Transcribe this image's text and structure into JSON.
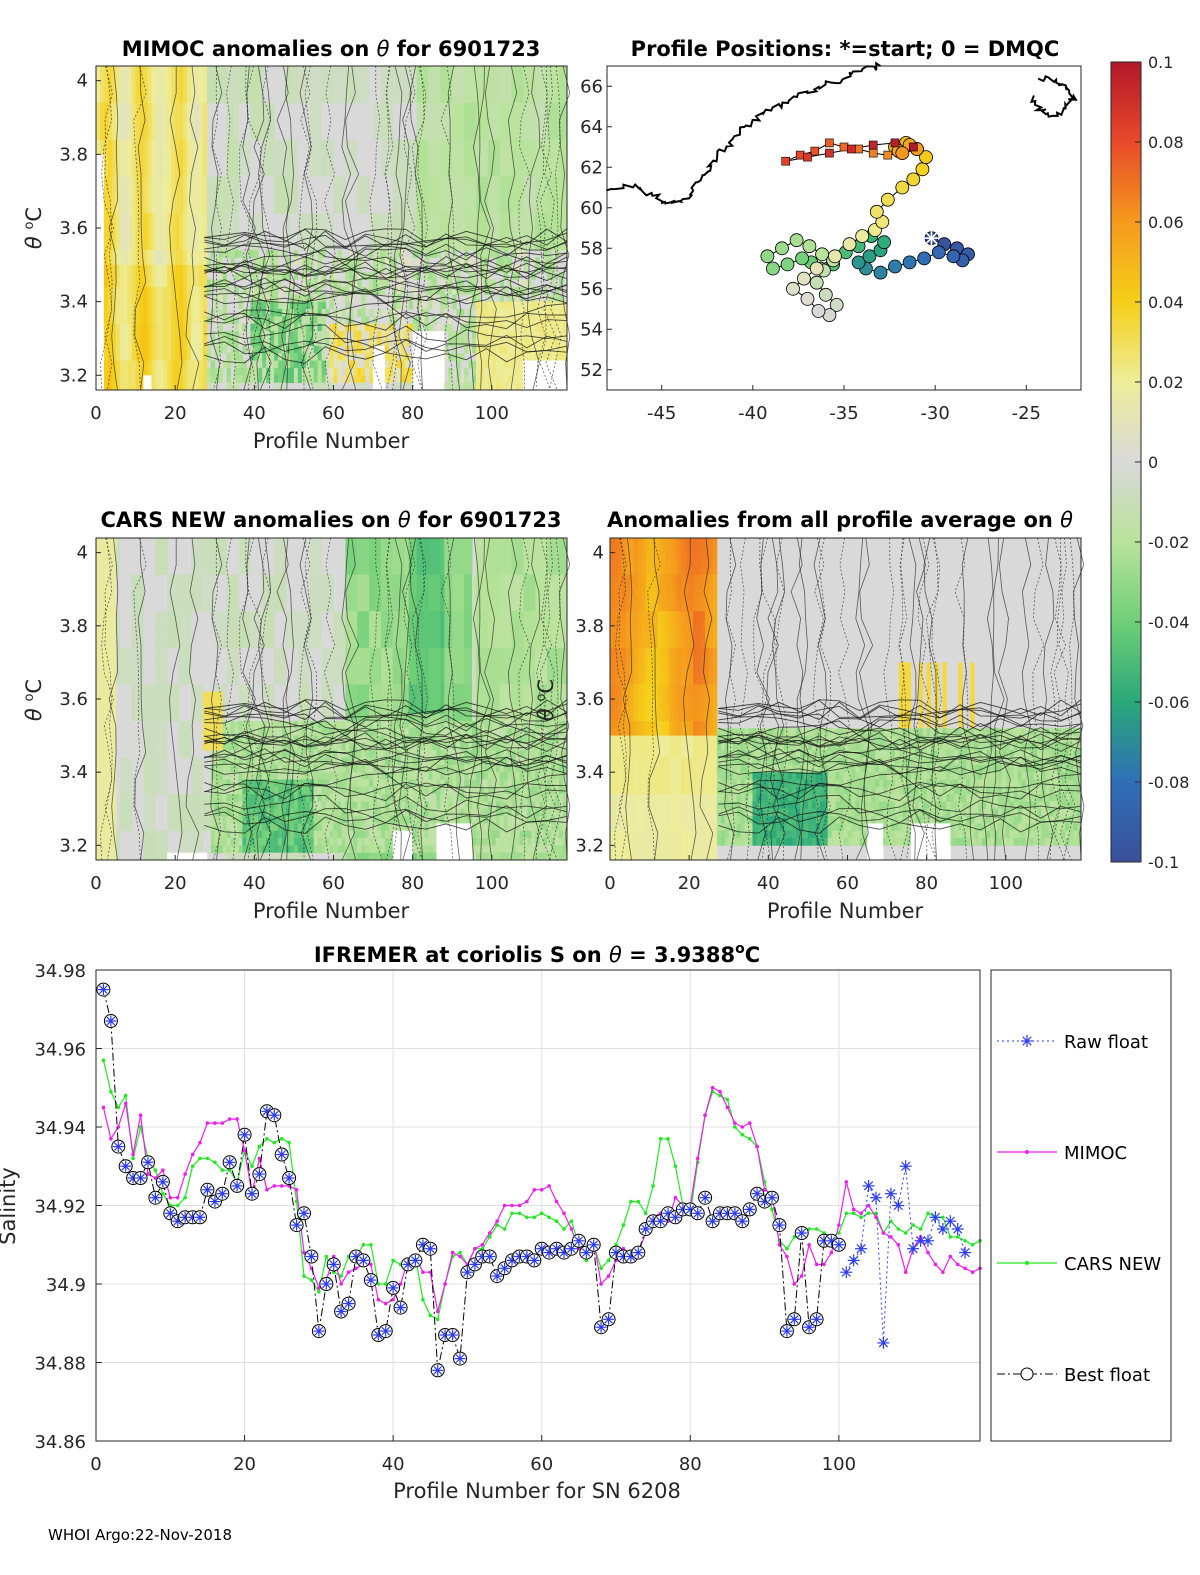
{
  "footer": "WHOI Argo:22-Nov-2018",
  "colorbar": {
    "ticks": [
      "0.1",
      "0.08",
      "0.06",
      "0.04",
      "0.02",
      "0",
      "-0.02",
      "-0.04",
      "-0.06",
      "-0.08",
      "-0.1"
    ],
    "values": [
      0.1,
      0.08,
      0.06,
      0.04,
      0.02,
      0,
      -0.02,
      -0.04,
      -0.06,
      -0.08,
      -0.1
    ],
    "stops": [
      "#b2182b",
      "#e8492a",
      "#f59a1d",
      "#f5cf19",
      "#eded9a",
      "#d9d9d9",
      "#b9e39a",
      "#6fcf77",
      "#2aa87a",
      "#2f6fb7",
      "#3a4f9a"
    ]
  },
  "chart_data": [
    {
      "type": "heatmap",
      "id": "mimoc",
      "title_main": "MIMOC anomalies on ",
      "title_theta": "θ",
      "title_rest": "  for 6901723",
      "xlabel": "Profile Number",
      "ylabel_theta": "θ",
      "ylabel_unit": " ",
      "ylabel_o": "o",
      "ylabel_c": "C",
      "xlim": [
        0,
        119
      ],
      "ylim": [
        3.16,
        4.04
      ],
      "xticks": [
        "0",
        "20",
        "40",
        "60",
        "80",
        "100"
      ],
      "yticks": [
        "3.2",
        "3.4",
        "3.6",
        "3.8",
        "4"
      ]
    },
    {
      "type": "scatter",
      "id": "positions",
      "title": "Profile Positions: *=start; 0 = DMQC",
      "xlim": [
        -48,
        -22
      ],
      "ylim": [
        51,
        67
      ],
      "xticks": [
        "-45",
        "-40",
        "-35",
        "-30",
        "-25"
      ],
      "yticks": [
        "52",
        "54",
        "56",
        "58",
        "60",
        "62",
        "64",
        "66"
      ],
      "track_lon": [
        -30.2,
        -29.5,
        -28.8,
        -28.2,
        -28.5,
        -29.0,
        -29.8,
        -30.6,
        -31.4,
        -32.2,
        -33.0,
        -33.8,
        -34.2,
        -33.6,
        -33.0,
        -32.8,
        -33.5,
        -34.2,
        -34.9,
        -35.6,
        -36.3,
        -36.8,
        -37.3,
        -38.1,
        -38.9,
        -39.2,
        -38.4,
        -37.6,
        -36.9,
        -36.2,
        -35.6,
        -36.1,
        -36.5,
        -36.0,
        -35.4,
        -35.8,
        -36.4,
        -37.0,
        -37.8,
        -37.2,
        -36.5,
        -35.5,
        -34.7,
        -34.0,
        -33.3,
        -32.9,
        -33.2,
        -32.6,
        -31.8,
        -31.2,
        -30.7,
        -30.5,
        -31.0,
        -31.6,
        -32.2,
        -32.0,
        -31.4,
        -31.0,
        -31.8,
        -32.6,
        -33.4,
        -34.2,
        -35.0,
        -35.8,
        -36.6,
        -37.4,
        -38.2,
        -37.0,
        -35.8,
        -34.6,
        -33.4,
        -32.2,
        -31.2
      ],
      "track_lat": [
        58.5,
        58.2,
        58.0,
        57.7,
        57.4,
        57.6,
        57.8,
        57.5,
        57.3,
        57.1,
        56.8,
        57.0,
        57.3,
        57.6,
        57.9,
        58.3,
        58.6,
        58.1,
        57.8,
        57.2,
        57.0,
        57.3,
        57.5,
        57.2,
        57.0,
        57.6,
        58.0,
        58.4,
        58.1,
        57.7,
        57.4,
        56.9,
        56.3,
        55.7,
        55.2,
        54.7,
        54.9,
        55.5,
        56.0,
        56.5,
        57.0,
        57.6,
        58.2,
        58.6,
        58.9,
        59.3,
        59.8,
        60.4,
        61.0,
        61.4,
        61.9,
        62.5,
        62.9,
        63.2,
        63.0,
        62.8,
        63.1,
        62.9,
        62.7,
        62.6,
        62.7,
        62.9,
        63.0,
        63.2,
        62.8,
        62.6,
        62.3,
        62.5,
        62.7,
        62.9,
        63.1,
        63.2,
        63.0
      ],
      "start_lon": -30.2,
      "start_lat": 58.5,
      "dmqc_count": 59,
      "coast": [
        [
          [
            -48,
            60.8
          ],
          [
            -46.5,
            61.1
          ],
          [
            -45.6,
            60.7
          ],
          [
            -44.8,
            60.3
          ],
          [
            -44.0,
            60.3
          ],
          [
            -43.3,
            60.8
          ],
          [
            -42.8,
            61.6
          ],
          [
            -42.2,
            62.3
          ],
          [
            -41.5,
            63.0
          ],
          [
            -40.8,
            63.6
          ],
          [
            -40.0,
            64.3
          ],
          [
            -39.0,
            64.8
          ],
          [
            -38.0,
            65.3
          ],
          [
            -37.0,
            65.7
          ],
          [
            -36.0,
            66.1
          ],
          [
            -35.0,
            66.4
          ],
          [
            -34.0,
            66.8
          ],
          [
            -33.0,
            67.0
          ]
        ],
        [
          [
            -24.3,
            66.4
          ],
          [
            -23.4,
            66.3
          ],
          [
            -22.8,
            66.0
          ],
          [
            -22.4,
            65.5
          ],
          [
            -22.8,
            64.9
          ],
          [
            -23.5,
            64.5
          ],
          [
            -24.2,
            64.8
          ],
          [
            -24.6,
            65.5
          ]
        ]
      ]
    },
    {
      "type": "heatmap",
      "id": "cars",
      "title_main": "CARS NEW anomalies on ",
      "title_theta": "θ",
      "title_rest": " for 6901723",
      "xlabel": "",
      "ylabel_theta": "θ",
      "ylabel_unit": " ",
      "ylabel_o": "o",
      "ylabel_c": "C",
      "xlim": [
        0,
        119
      ],
      "ylim": [
        3.16,
        4.04
      ],
      "xticks": [
        "0",
        "20",
        "40",
        "60",
        "80",
        "100"
      ],
      "yticks": [
        "3.2",
        "3.4",
        "3.6",
        "3.8",
        "4"
      ]
    },
    {
      "type": "heatmap",
      "id": "allavg",
      "title_main": "Anomalies from all profile average on ",
      "title_theta": "θ",
      "title_rest": "",
      "xlabel": "Profile Number",
      "ylabel_theta": "θ",
      "ylabel_unit": " ",
      "ylabel_o": "o",
      "ylabel_c": "C",
      "xlim": [
        0,
        119
      ],
      "ylim": [
        3.16,
        4.04
      ],
      "xticks": [
        "0",
        "20",
        "40",
        "60",
        "80",
        "100"
      ],
      "yticks": [
        "3.2",
        "3.4",
        "3.6",
        "3.8",
        "4"
      ]
    },
    {
      "type": "line",
      "id": "salinity",
      "title_main": "IFREMER at coriolis S on ",
      "title_theta": "θ",
      "title_value": " = 3.9388",
      "title_o": "o",
      "title_c": "C",
      "xlabel": "Profile Number for SN 6208",
      "ylabel": "Salinity",
      "xlim": [
        0,
        119
      ],
      "ylim": [
        34.86,
        34.98
      ],
      "xticks": [
        0,
        20,
        40,
        60,
        80,
        100
      ],
      "yticks": [
        34.86,
        34.88,
        34.9,
        34.92,
        34.94,
        34.96,
        34.98
      ],
      "ytick_labels": [
        "34.86",
        "34.88",
        "34.9",
        "34.92",
        "34.94",
        "34.96",
        "34.98"
      ],
      "legend": [
        "Raw float",
        "MIMOC",
        "CARS NEW",
        "Best float"
      ],
      "colors": {
        "raw": "#2a3cf0",
        "mimoc": "#ee1fee",
        "cars": "#22e822",
        "best": "#000000"
      },
      "raw_x": [
        101,
        102,
        103,
        104,
        105,
        106,
        107,
        108,
        109,
        110,
        111,
        112,
        113,
        114,
        115,
        116,
        117
      ],
      "raw_y": [
        34.903,
        34.906,
        34.909,
        34.925,
        34.922,
        34.885,
        34.923,
        34.92,
        34.93,
        34.909,
        34.911,
        34.911,
        34.917,
        34.914,
        34.916,
        34.914,
        34.908
      ],
      "best_x": [
        1,
        2,
        3,
        4,
        5,
        6,
        7,
        8,
        9,
        10,
        11,
        12,
        13,
        14,
        15,
        16,
        17,
        18,
        19,
        20,
        21,
        22,
        23,
        24,
        25,
        26,
        27,
        28,
        29,
        30,
        31,
        32,
        33,
        34,
        35,
        36,
        37,
        38,
        39,
        40,
        41,
        42,
        43,
        44,
        45,
        46,
        47,
        48,
        49,
        50,
        51,
        52,
        53,
        54,
        55,
        56,
        57,
        58,
        59,
        60,
        61,
        62,
        63,
        64,
        65,
        66,
        67,
        68,
        69,
        70,
        71,
        72,
        73,
        74,
        75,
        76,
        77,
        78,
        79,
        80,
        81,
        82,
        83,
        84,
        85,
        86,
        87,
        88,
        89,
        90,
        91,
        92,
        93,
        94,
        95,
        96,
        97,
        98,
        99,
        100
      ],
      "best_y": [
        34.975,
        34.967,
        34.935,
        34.93,
        34.927,
        34.927,
        34.931,
        34.922,
        34.926,
        34.918,
        34.916,
        34.917,
        34.917,
        34.917,
        34.924,
        34.921,
        34.923,
        34.931,
        34.925,
        34.938,
        34.923,
        34.928,
        34.944,
        34.943,
        34.933,
        34.927,
        34.915,
        34.918,
        34.907,
        34.888,
        34.9,
        34.905,
        34.893,
        34.895,
        34.907,
        34.906,
        34.901,
        34.887,
        34.888,
        34.899,
        34.894,
        34.905,
        34.906,
        34.91,
        34.909,
        34.878,
        34.887,
        34.887,
        34.881,
        34.903,
        34.905,
        34.907,
        34.907,
        34.902,
        34.904,
        34.906,
        34.907,
        34.907,
        34.906,
        34.909,
        34.908,
        34.909,
        34.908,
        34.909,
        34.911,
        34.908,
        34.91,
        34.889,
        34.891,
        34.908,
        34.907,
        34.907,
        34.908,
        34.914,
        34.916,
        34.916,
        34.918,
        34.917,
        34.919,
        34.919,
        34.918,
        34.922,
        34.916,
        34.918,
        34.918,
        34.918,
        34.916,
        34.919,
        34.923,
        34.921,
        34.922,
        34.915,
        34.888,
        34.891,
        34.913,
        34.889,
        34.891,
        34.911,
        34.911,
        34.91
      ],
      "mimoc_x": [
        1,
        2,
        3,
        4,
        5,
        6,
        7,
        8,
        9,
        10,
        11,
        12,
        13,
        14,
        15,
        16,
        17,
        18,
        19,
        20,
        21,
        22,
        23,
        24,
        25,
        26,
        27,
        28,
        29,
        30,
        31,
        32,
        33,
        34,
        35,
        36,
        37,
        38,
        39,
        40,
        41,
        42,
        43,
        44,
        45,
        46,
        47,
        48,
        49,
        50,
        51,
        52,
        53,
        54,
        55,
        56,
        57,
        58,
        59,
        60,
        61,
        62,
        63,
        64,
        65,
        66,
        67,
        68,
        69,
        70,
        71,
        72,
        73,
        74,
        75,
        76,
        77,
        78,
        79,
        80,
        81,
        82,
        83,
        84,
        85,
        86,
        87,
        88,
        89,
        90,
        91,
        92,
        93,
        94,
        95,
        96,
        97,
        98,
        99,
        100,
        101,
        102,
        103,
        104,
        105,
        106,
        107,
        108,
        109,
        110,
        111,
        112,
        113,
        114,
        115,
        116,
        117,
        118,
        119
      ],
      "mimoc_y": [
        34.945,
        34.937,
        34.94,
        34.946,
        34.933,
        34.943,
        34.928,
        34.927,
        34.929,
        34.922,
        34.922,
        34.928,
        34.933,
        34.936,
        34.941,
        34.941,
        34.941,
        34.942,
        34.942,
        34.934,
        34.923,
        34.932,
        34.924,
        34.925,
        34.925,
        34.925,
        34.924,
        34.908,
        34.904,
        34.899,
        34.901,
        34.907,
        34.9,
        34.903,
        34.904,
        34.905,
        34.905,
        34.896,
        34.895,
        34.896,
        34.9,
        34.906,
        34.907,
        34.903,
        34.903,
        34.893,
        34.9,
        34.908,
        34.907,
        34.905,
        34.909,
        34.91,
        34.913,
        34.916,
        34.92,
        34.92,
        34.92,
        34.921,
        34.924,
        34.924,
        34.925,
        34.921,
        34.918,
        34.914,
        34.909,
        34.908,
        34.911,
        34.9,
        34.902,
        34.906,
        34.909,
        34.906,
        34.908,
        34.913,
        34.917,
        34.918,
        34.916,
        34.922,
        34.92,
        34.92,
        34.932,
        34.943,
        34.95,
        34.949,
        34.945,
        34.941,
        34.94,
        34.941,
        34.935,
        34.924,
        34.923,
        34.91,
        34.907,
        34.9,
        34.902,
        34.91,
        34.905,
        34.905,
        34.908,
        34.915,
        34.926,
        34.919,
        34.918,
        34.92,
        34.917,
        34.913,
        34.912,
        34.91,
        34.903,
        34.909,
        34.912,
        34.908,
        34.905,
        34.903,
        34.907,
        34.905,
        34.904,
        34.903,
        34.904
      ],
      "cars_x": [
        1,
        2,
        3,
        4,
        5,
        6,
        7,
        8,
        9,
        10,
        11,
        12,
        13,
        14,
        15,
        16,
        17,
        18,
        19,
        20,
        21,
        22,
        23,
        24,
        25,
        26,
        27,
        28,
        29,
        30,
        31,
        32,
        33,
        34,
        35,
        36,
        37,
        38,
        39,
        40,
        41,
        42,
        43,
        44,
        45,
        46,
        47,
        48,
        49,
        50,
        51,
        52,
        53,
        54,
        55,
        56,
        57,
        58,
        59,
        60,
        61,
        62,
        63,
        64,
        65,
        66,
        67,
        68,
        69,
        70,
        71,
        72,
        73,
        74,
        75,
        76,
        77,
        78,
        79,
        80,
        81,
        82,
        83,
        84,
        85,
        86,
        87,
        88,
        89,
        90,
        91,
        92,
        93,
        94,
        95,
        96,
        97,
        98,
        99,
        100,
        101,
        102,
        103,
        104,
        105,
        106,
        107,
        108,
        109,
        110,
        111,
        112,
        113,
        114,
        115,
        116,
        117,
        118,
        119
      ],
      "cars_y": [
        34.957,
        34.949,
        34.945,
        34.948,
        34.932,
        34.94,
        34.932,
        34.929,
        34.923,
        34.92,
        34.92,
        34.922,
        34.93,
        34.932,
        34.932,
        34.931,
        34.929,
        34.929,
        34.926,
        34.934,
        34.93,
        34.935,
        34.937,
        34.936,
        34.937,
        34.936,
        34.921,
        34.902,
        34.901,
        34.898,
        34.907,
        34.903,
        34.902,
        34.907,
        34.907,
        34.91,
        34.91,
        34.9,
        34.9,
        34.906,
        34.905,
        34.906,
        34.907,
        34.896,
        34.892,
        34.891,
        34.9,
        34.907,
        34.908,
        34.905,
        34.909,
        34.909,
        34.912,
        34.915,
        34.914,
        34.918,
        34.918,
        34.917,
        34.917,
        34.918,
        34.917,
        34.916,
        34.914,
        34.916,
        34.91,
        34.906,
        34.91,
        34.904,
        34.906,
        34.91,
        34.915,
        34.921,
        34.921,
        34.918,
        34.925,
        34.937,
        34.937,
        34.93,
        34.92,
        34.918,
        34.931,
        34.943,
        34.949,
        34.948,
        34.947,
        34.94,
        34.938,
        34.937,
        34.935,
        34.926,
        34.919,
        34.911,
        34.909,
        34.912,
        34.913,
        34.914,
        34.914,
        34.913,
        34.912,
        34.913,
        34.918,
        34.918,
        34.917,
        34.918,
        34.918,
        34.913,
        34.916,
        34.914,
        34.913,
        34.915,
        34.914,
        34.918,
        34.917,
        34.917,
        34.912,
        34.912,
        34.911,
        34.91,
        34.911
      ]
    }
  ]
}
